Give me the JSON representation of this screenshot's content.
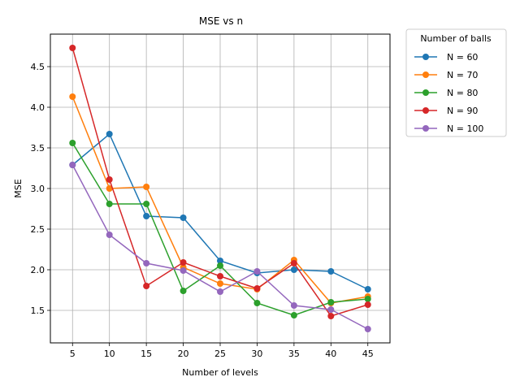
{
  "chart_data": {
    "type": "line",
    "title": "MSE vs n",
    "xlabel": "Number of levels",
    "ylabel": "MSE",
    "x": [
      5,
      10,
      15,
      20,
      25,
      30,
      35,
      40,
      45
    ],
    "xticks": [
      "5",
      "10",
      "15",
      "20",
      "25",
      "30",
      "35",
      "40",
      "45"
    ],
    "yticks": [
      "1.5",
      "2.0",
      "2.5",
      "3.0",
      "3.5",
      "4.0",
      "4.5"
    ],
    "xlim": [
      2.0,
      48.0
    ],
    "ylim": [
      1.1,
      4.9
    ],
    "grid": true,
    "legend": {
      "title": "Number of balls",
      "placement": "outside-top-right"
    },
    "series": [
      {
        "name": "N = 60",
        "color": "#1f77b4",
        "values": [
          3.29,
          3.67,
          2.66,
          2.64,
          2.11,
          1.96,
          2.0,
          1.98,
          1.76
        ]
      },
      {
        "name": "N = 70",
        "color": "#ff7f0e",
        "values": [
          4.13,
          3.0,
          3.02,
          2.03,
          1.83,
          1.76,
          2.12,
          1.59,
          1.67
        ]
      },
      {
        "name": "N = 80",
        "color": "#2ca02c",
        "values": [
          3.56,
          2.81,
          2.81,
          1.74,
          2.05,
          1.59,
          1.44,
          1.6,
          1.64
        ]
      },
      {
        "name": "N = 90",
        "color": "#d62728",
        "values": [
          4.73,
          3.11,
          1.8,
          2.09,
          1.92,
          1.77,
          2.08,
          1.43,
          1.57
        ]
      },
      {
        "name": "N = 100",
        "color": "#9467bd",
        "values": [
          3.29,
          2.43,
          2.08,
          1.99,
          1.73,
          1.98,
          1.56,
          1.51,
          1.27
        ]
      }
    ]
  }
}
